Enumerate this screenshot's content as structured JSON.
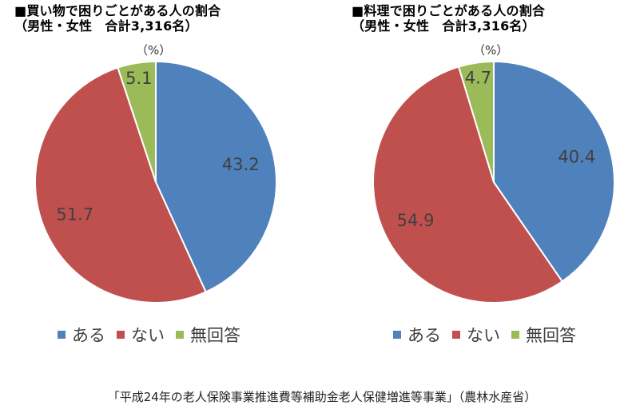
{
  "colors": {
    "ある": "#4f81bd",
    "ない": "#c0504d",
    "無回答": "#9bbb59"
  },
  "chart_data": [
    {
      "type": "pie",
      "title": "■買い物で困りごとがある人の割合\n（男性・女性　合計3,316名）",
      "unit": "（%）",
      "categories": [
        "ある",
        "ない",
        "無回答"
      ],
      "values": [
        43.2,
        51.7,
        5.1
      ],
      "value_labels": [
        "43.2",
        "51.7",
        "5.1"
      ],
      "legend": "bottom"
    },
    {
      "type": "pie",
      "title": "■料理で困りごとがある人の割合\n（男性・女性　合計3,316名）",
      "unit": "（%）",
      "categories": [
        "ある",
        "ない",
        "無回答"
      ],
      "values": [
        40.4,
        54.9,
        4.7
      ],
      "value_labels": [
        "40.4",
        "54.9",
        "4.7"
      ],
      "legend": "bottom"
    }
  ],
  "source": "「平成24年の老人保険事業推進費等補助金老人保健増進等事業」（農林水産省）"
}
